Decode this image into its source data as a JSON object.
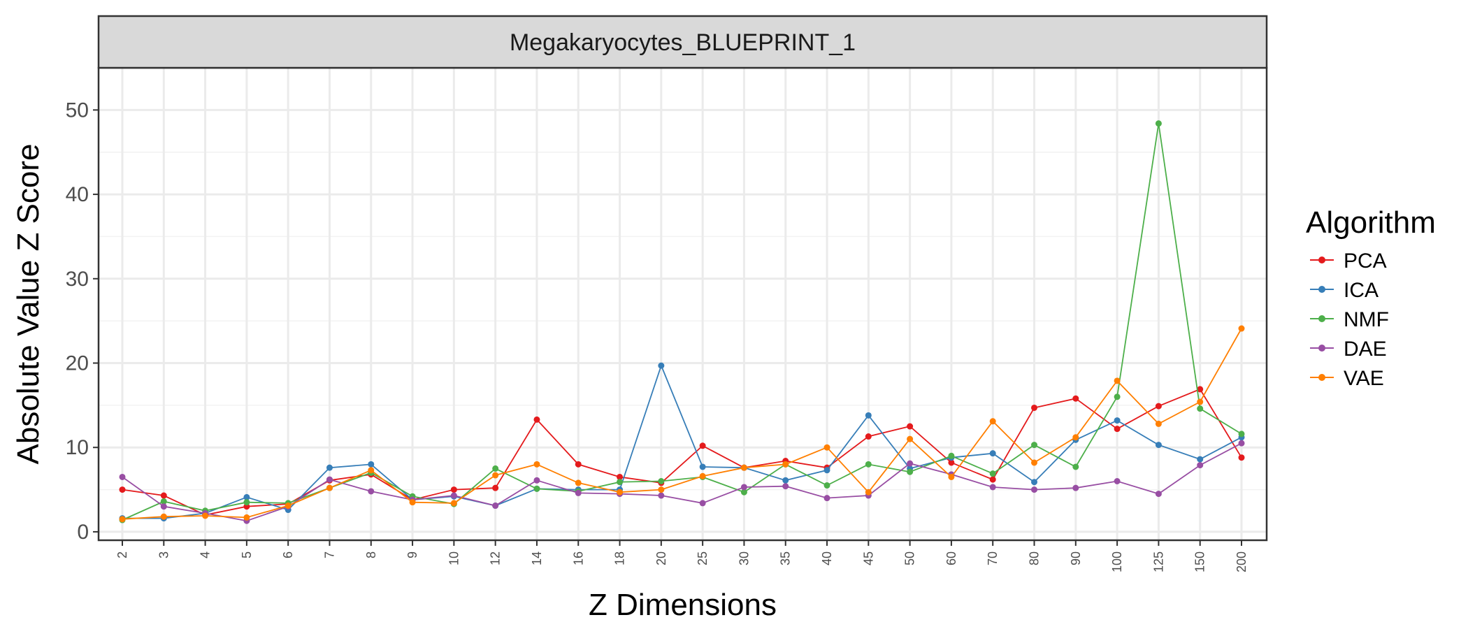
{
  "chart_data": {
    "type": "line",
    "title": "Megakaryocytes_BLUEPRINT_1",
    "xlabel": "Z Dimensions",
    "ylabel": "Absolute Value Z Score",
    "ylim": [
      -1,
      55
    ],
    "y_ticks": [
      0,
      10,
      20,
      30,
      40,
      50
    ],
    "grid": true,
    "legend_title": "Algorithm",
    "legend_position": "right",
    "categories": [
      "2",
      "3",
      "4",
      "5",
      "6",
      "7",
      "8",
      "9",
      "10",
      "12",
      "14",
      "16",
      "18",
      "20",
      "25",
      "30",
      "35",
      "40",
      "45",
      "50",
      "60",
      "70",
      "80",
      "90",
      "100",
      "125",
      "150",
      "200"
    ],
    "series": [
      {
        "name": "PCA",
        "color": "#e41a1c",
        "values": [
          5.0,
          4.3,
          2.0,
          3.0,
          3.3,
          6.1,
          6.8,
          3.8,
          5.0,
          5.2,
          13.3,
          8.0,
          6.5,
          5.8,
          10.2,
          7.6,
          8.4,
          7.6,
          11.3,
          12.5,
          8.2,
          6.2,
          14.7,
          15.8,
          12.2,
          14.9,
          16.9,
          8.8
        ]
      },
      {
        "name": "ICA",
        "color": "#377eb8",
        "values": [
          1.6,
          1.6,
          2.2,
          4.1,
          2.6,
          7.6,
          8.0,
          3.8,
          4.2,
          3.1,
          5.1,
          5.0,
          5.0,
          19.7,
          7.7,
          7.6,
          6.1,
          7.3,
          13.8,
          7.5,
          8.8,
          9.3,
          5.9,
          10.9,
          13.2,
          10.3,
          8.6,
          11.2
        ]
      },
      {
        "name": "NMF",
        "color": "#4daf4a",
        "values": [
          1.4,
          3.6,
          2.5,
          3.5,
          3.4,
          5.2,
          7.0,
          4.2,
          3.3,
          7.5,
          5.1,
          4.8,
          5.9,
          6.0,
          6.5,
          4.7,
          8.0,
          5.5,
          8.0,
          7.1,
          9.0,
          6.9,
          10.3,
          7.7,
          16.0,
          48.4,
          14.6,
          11.6
        ]
      },
      {
        "name": "DAE",
        "color": "#984ea3",
        "values": [
          6.5,
          3.0,
          2.2,
          1.3,
          3.0,
          6.2,
          4.8,
          3.8,
          4.3,
          3.1,
          6.1,
          4.6,
          4.5,
          4.3,
          3.4,
          5.3,
          5.4,
          4.0,
          4.3,
          8.1,
          6.8,
          5.3,
          5.0,
          5.2,
          6.0,
          4.5,
          7.9,
          10.5
        ]
      },
      {
        "name": "VAE",
        "color": "#ff7f00",
        "values": [
          1.5,
          1.8,
          1.9,
          1.7,
          3.1,
          5.2,
          7.3,
          3.5,
          3.4,
          6.7,
          8.0,
          5.8,
          4.7,
          5.0,
          6.6,
          7.6,
          8.0,
          10.0,
          4.7,
          11.0,
          6.5,
          13.1,
          8.2,
          11.2,
          17.9,
          12.8,
          15.4,
          24.1
        ]
      }
    ]
  }
}
